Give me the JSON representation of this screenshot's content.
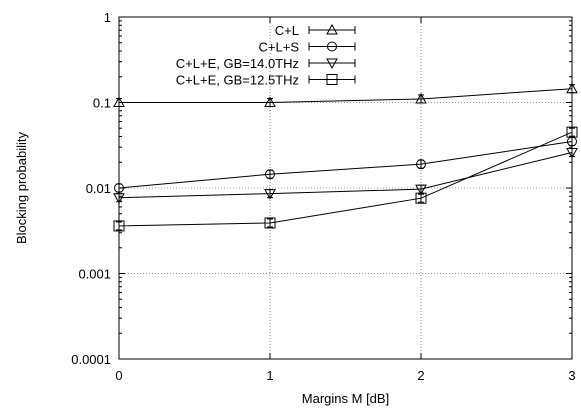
{
  "chart_data": {
    "type": "line",
    "xlabel": "Margins M [dB]",
    "ylabel": "Blocking probability",
    "x": [
      0,
      1,
      2,
      3
    ],
    "xlim": [
      0,
      3
    ],
    "ylim": [
      0.0001,
      1
    ],
    "yscale": "log",
    "xticks": [
      "0",
      "1",
      "2",
      "3"
    ],
    "yticks": [
      {
        "value": 0.0001,
        "label": "0.0001"
      },
      {
        "value": 0.001,
        "label": "0.001"
      },
      {
        "value": 0.01,
        "label": "0.01"
      },
      {
        "value": 0.1,
        "label": "0.1"
      },
      {
        "value": 1,
        "label": "1"
      }
    ],
    "grid": true,
    "legend_position": "top-right",
    "error_bars": true,
    "series": [
      {
        "name": "C+L",
        "marker": "triangle-up",
        "values": [
          0.1,
          0.1,
          0.11,
          0.145
        ]
      },
      {
        "name": "C+L+S",
        "marker": "circle",
        "values": [
          0.01,
          0.0145,
          0.019,
          0.035
        ]
      },
      {
        "name": "C+L+E, GB=14.0THz",
        "marker": "triangle-down",
        "values": [
          0.0077,
          0.0086,
          0.0097,
          0.026
        ]
      },
      {
        "name": "C+L+E, GB=12.5THz",
        "marker": "square",
        "values": [
          0.0036,
          0.0039,
          0.0076,
          0.045
        ]
      }
    ]
  }
}
